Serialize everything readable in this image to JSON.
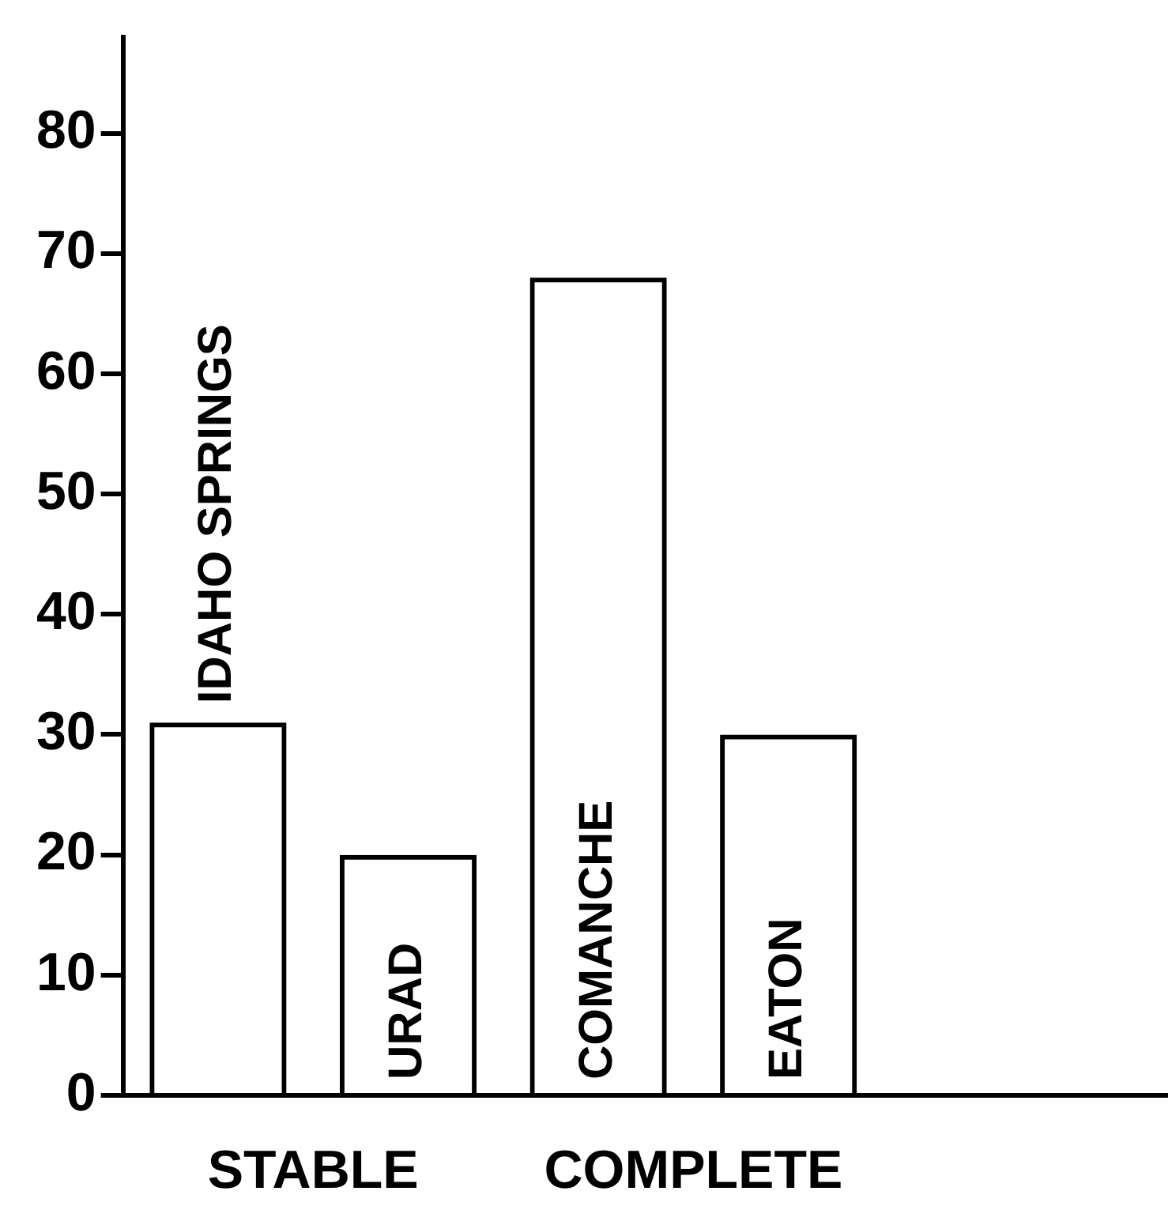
{
  "chart_data": {
    "type": "bar",
    "categories": [
      "IDAHO SPRINGS",
      "URAD",
      "COMANCHE",
      "EATON"
    ],
    "values": [
      31,
      20,
      68,
      30
    ],
    "color": "#000000",
    "ylim": [
      0,
      88
    ],
    "yticks": [
      0,
      10,
      20,
      30,
      40,
      50,
      60,
      70,
      80
    ],
    "grid": false,
    "legend": false,
    "annotations": [
      "STABLE",
      "COMPLETE"
    ]
  }
}
